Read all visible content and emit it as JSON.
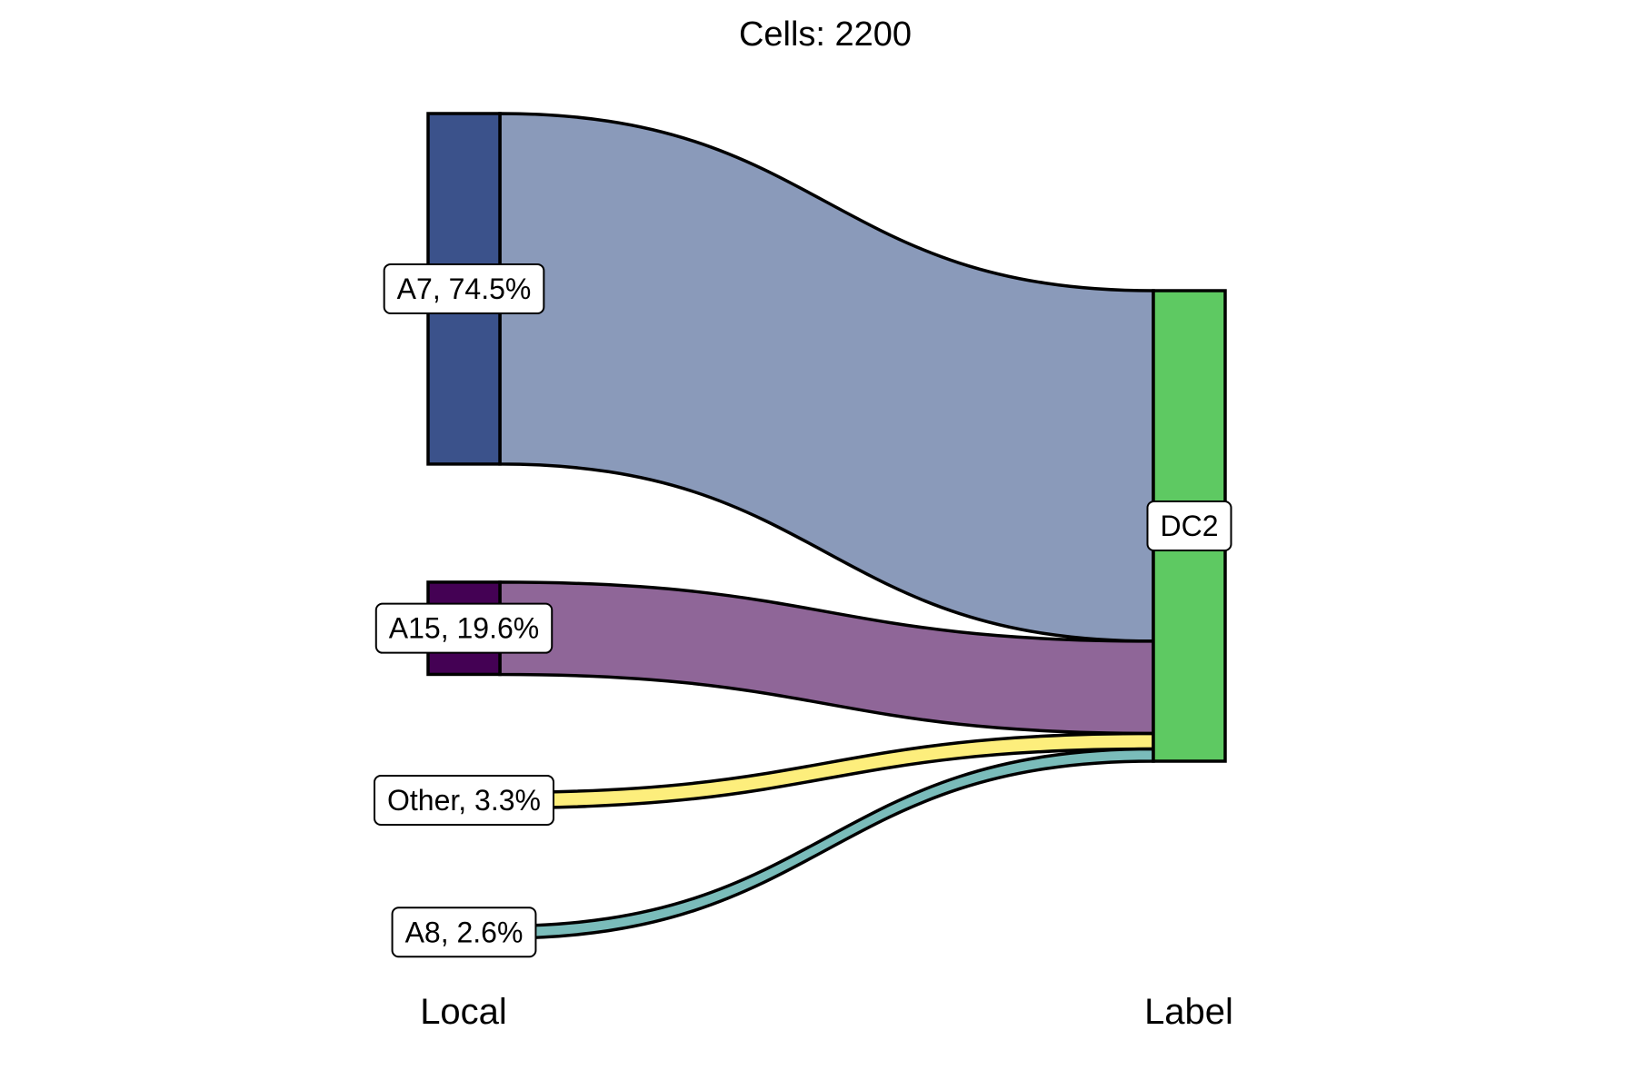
{
  "chart_data": {
    "type": "sankey",
    "title": "Cells:  2200",
    "axis_labels": [
      "Local",
      "Label"
    ],
    "sources": [
      {
        "name": "A7",
        "label": "A7, 74.5%",
        "share": 74.5,
        "color": "#3b528b",
        "flow_color": "#8a9aba"
      },
      {
        "name": "A15",
        "label": "A15, 19.6%",
        "share": 19.6,
        "color": "#440154",
        "flow_color": "#8f6698"
      },
      {
        "name": "Other",
        "label": "Other, 3.3%",
        "share": 3.3,
        "color": "#fde725",
        "flow_color": "#fdee7c"
      },
      {
        "name": "A8",
        "label": "A8, 2.6%",
        "share": 2.6,
        "color": "#21908c",
        "flow_color": "#7abcba"
      }
    ],
    "targets": [
      {
        "name": "DC2",
        "label": "DC2",
        "share": 100,
        "color": "#5ec962"
      }
    ],
    "flows": [
      {
        "from": "A7",
        "to": "DC2",
        "share": 74.5
      },
      {
        "from": "A15",
        "to": "DC2",
        "share": 19.6
      },
      {
        "from": "Other",
        "to": "DC2",
        "share": 3.3
      },
      {
        "from": "A8",
        "to": "DC2",
        "share": 2.6
      }
    ]
  }
}
